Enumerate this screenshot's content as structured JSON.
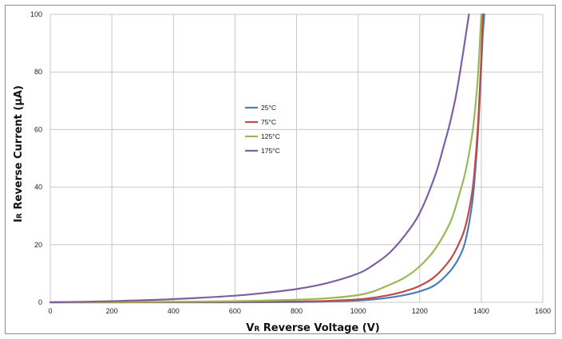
{
  "chart_data": {
    "type": "line",
    "xlabel_main": "V",
    "xlabel_sub": "R",
    "xlabel_rest": " Reverse Voltage (V)",
    "ylabel_main": "I",
    "ylabel_sub": "R",
    "ylabel_rest": " Reverse Current (µA)",
    "xlim": [
      0,
      1600
    ],
    "ylim": [
      0,
      100
    ],
    "xticks": [
      0,
      200,
      400,
      600,
      800,
      1000,
      1200,
      1400,
      1600
    ],
    "yticks": [
      0,
      20,
      40,
      60,
      80,
      100
    ],
    "grid": true,
    "legend_position": "center",
    "series": [
      {
        "name": "25°C",
        "color": "#4a7ebb",
        "x": [
          0,
          200,
          400,
          600,
          800,
          900,
          1000,
          1050,
          1100,
          1150,
          1200,
          1250,
          1300,
          1330,
          1350,
          1370,
          1380,
          1390,
          1400,
          1405,
          1410
        ],
        "y": [
          0,
          0,
          0,
          0,
          0.1,
          0.3,
          0.6,
          1.0,
          1.6,
          2.5,
          3.8,
          6,
          11,
          16,
          22,
          34,
          45,
          60,
          82,
          93,
          100
        ]
      },
      {
        "name": "75°C",
        "color": "#be4b48",
        "x": [
          0,
          200,
          400,
          600,
          800,
          900,
          1000,
          1050,
          1100,
          1150,
          1200,
          1250,
          1300,
          1330,
          1350,
          1370,
          1380,
          1390,
          1400,
          1405
        ],
        "y": [
          0,
          0,
          0.1,
          0.2,
          0.3,
          0.5,
          1.0,
          1.6,
          2.5,
          3.8,
          5.7,
          9,
          15,
          21,
          27,
          38,
          48,
          63,
          85,
          100
        ]
      },
      {
        "name": "125°C",
        "color": "#98b954",
        "x": [
          0,
          200,
          400,
          600,
          800,
          900,
          1000,
          1050,
          1100,
          1150,
          1200,
          1250,
          1300,
          1330,
          1350,
          1370,
          1380,
          1390,
          1400
        ],
        "y": [
          0,
          0.1,
          0.2,
          0.4,
          0.9,
          1.4,
          2.5,
          3.8,
          6,
          8.5,
          12.5,
          18.5,
          28,
          38,
          46,
          58,
          67,
          80,
          100
        ]
      },
      {
        "name": "175°C",
        "color": "#7d60a0",
        "x": [
          0,
          200,
          400,
          600,
          700,
          800,
          900,
          1000,
          1050,
          1100,
          1150,
          1200,
          1250,
          1280,
          1300,
          1320,
          1340,
          1350,
          1360
        ],
        "y": [
          0,
          0.4,
          1.1,
          2.3,
          3.3,
          4.6,
          6.7,
          10,
          13,
          17,
          23,
          31,
          44,
          55,
          63,
          73,
          86,
          93,
          100
        ]
      }
    ]
  }
}
